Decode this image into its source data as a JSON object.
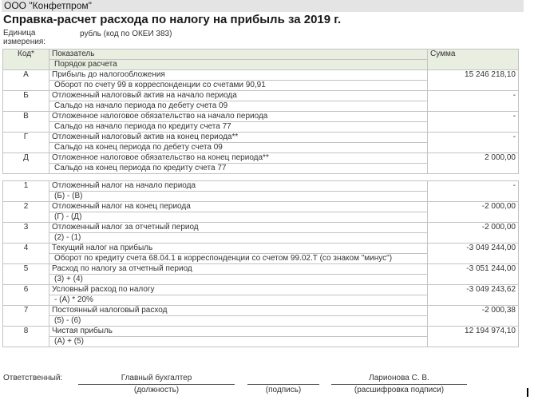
{
  "header": {
    "company": "ООО \"Конфетпром\"",
    "title": "Справка-расчет расхода по налогу на прибыль за 2019 г.",
    "unit_label": "Единица измерения:",
    "unit_value": "рубль (код по ОКЕИ 383)"
  },
  "table": {
    "col_code": "Код*",
    "col_indicator": "Показатель",
    "col_sub": "Порядок расчета",
    "col_sum": "Сумма",
    "rows_a": [
      {
        "code": "А",
        "name": "Прибыль до налогообложения",
        "calc": "Оборот по счету 99 в корреспонденции со счетами 90,91",
        "sum": "15 246 218,10"
      },
      {
        "code": "Б",
        "name": "Отложенный налоговый актив на начало периода",
        "calc": "Сальдо на начало периода по дебету счета 09",
        "sum": "-"
      },
      {
        "code": "В",
        "name": "Отложенное налоговое обязательство на начало периода",
        "calc": "Сальдо на начало периода по кредиту счета 77",
        "sum": "-"
      },
      {
        "code": "Г",
        "name": "Отложенный налоговый актив на конец периода**",
        "calc": "Сальдо на конец периода по дебету счета 09",
        "sum": "-"
      },
      {
        "code": "Д",
        "name": "Отложенное налоговое обязательство на конец периода**",
        "calc": "Сальдо на конец периода по кредиту счета  77",
        "sum": "2 000,00"
      }
    ],
    "rows_b": [
      {
        "code": "1",
        "name": "Отложенный налог на начало периода",
        "calc": "(Б) - (В)",
        "sum": "-"
      },
      {
        "code": "2",
        "name": "Отложенный налог на конец периода",
        "calc": "(Г) - (Д)",
        "sum": "-2 000,00"
      },
      {
        "code": "3",
        "name": "Отложенный налог за отчетный период",
        "calc": "(2) - (1)",
        "sum": "-2 000,00"
      },
      {
        "code": "4",
        "name": "Текущий налог на прибыль",
        "calc": "Оборот по кредиту счета 68.04.1 в корреспонденции со счетом 99.02.Т (со знаком \"минус\")",
        "sum": "-3 049 244,00"
      },
      {
        "code": "5",
        "name": "Расход по налогу за отчетный период",
        "calc": "(3) + (4)",
        "sum": "-3 051 244,00"
      },
      {
        "code": "6",
        "name": "Условный расход по налогу",
        "calc": "- (А) * 20%",
        "sum": "-3 049 243,62"
      },
      {
        "code": "7",
        "name": "Постоянный налоговый расход",
        "calc": "(5) - (6)",
        "sum": "-2 000,38"
      },
      {
        "code": "8",
        "name": "Чистая прибыль",
        "calc": "(А) + (5)",
        "sum": "12 194 974,10"
      }
    ]
  },
  "footer": {
    "responsible_label": "Ответственный:",
    "position_value": "Главный бухгалтер",
    "position_caption": "(должность)",
    "signature_caption": "(подпись)",
    "name_value": "Ларионова С. В.",
    "name_caption": "(расшифровка подписи)"
  }
}
